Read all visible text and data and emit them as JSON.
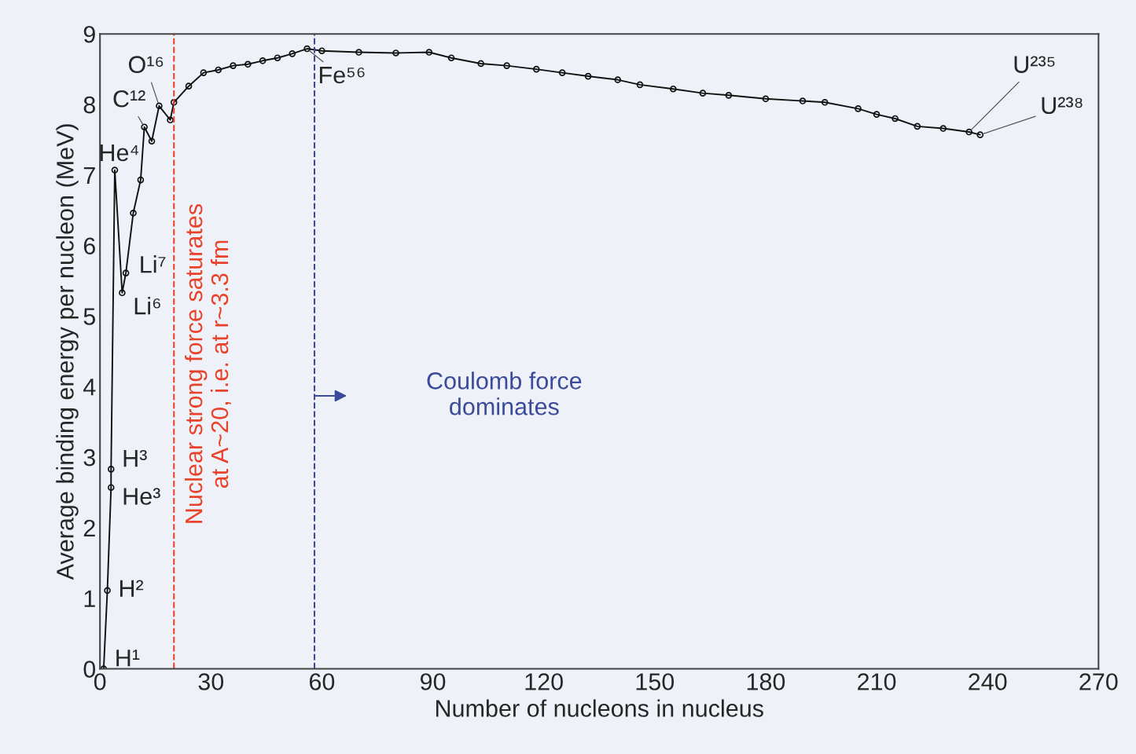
{
  "chart_data": {
    "type": "line",
    "xlabel": "Number of nucleons in nucleus",
    "ylabel": "Average binding energy per nucleon (MeV)",
    "x": [
      1,
      2,
      3,
      3,
      4,
      6,
      7,
      9,
      11,
      12,
      14,
      16,
      19,
      20,
      24,
      28,
      32,
      36,
      40,
      44,
      48,
      52,
      56,
      60,
      70,
      80,
      89,
      95,
      103,
      110,
      118,
      125,
      132,
      140,
      146,
      155,
      163,
      170,
      180,
      190,
      196,
      205,
      210,
      215,
      221,
      228,
      235,
      238
    ],
    "series": [
      {
        "color": "#111111",
        "values": [
          0,
          1.11,
          2.57,
          2.83,
          7.07,
          5.33,
          5.61,
          6.46,
          6.93,
          7.68,
          7.48,
          7.98,
          7.78,
          8.03,
          8.26,
          8.45,
          8.49,
          8.55,
          8.57,
          8.62,
          8.66,
          8.72,
          8.79,
          8.76,
          8.74,
          8.73,
          8.74,
          8.66,
          8.58,
          8.55,
          8.5,
          8.45,
          8.4,
          8.35,
          8.28,
          8.22,
          8.16,
          8.13,
          8.08,
          8.05,
          8.03,
          7.94,
          7.86,
          7.8,
          7.69,
          7.66,
          7.61,
          7.57
        ]
      }
    ],
    "marker": "circle",
    "line_style": "solid",
    "xlim": [
      0,
      270
    ],
    "xticks": [
      0,
      30,
      60,
      90,
      120,
      150,
      180,
      210,
      240,
      270
    ],
    "ylim": [
      0,
      9
    ],
    "yticks": [
      0,
      1,
      2,
      3,
      4,
      5,
      6,
      7,
      8,
      9
    ],
    "grid": false,
    "ref_lines": [
      {
        "axis": "x",
        "value": 20,
        "label": "Nuclear strong force saturates\nat A~20, i.e. at r~3.3 fm",
        "color": "#e8432a",
        "line_style": "dashed"
      },
      {
        "axis": "x",
        "value": 58,
        "label": "Coulomb force\ndominates",
        "color": "#3b4a9a",
        "line_style": "dashed"
      }
    ],
    "annotations": [
      {
        "text": "H¹",
        "x": 1,
        "y": 0
      },
      {
        "text": "H²",
        "x": 2,
        "y": 1.11
      },
      {
        "text": "H³",
        "x": 3,
        "y": 2.83
      },
      {
        "text": "He³",
        "x": 3,
        "y": 2.57
      },
      {
        "text": "He⁴",
        "x": 4,
        "y": 7.07
      },
      {
        "text": "Li⁶",
        "x": 6,
        "y": 5.33
      },
      {
        "text": "Li⁷",
        "x": 7,
        "y": 5.61
      },
      {
        "text": "C¹²",
        "x": 12,
        "y": 7.68
      },
      {
        "text": "O¹⁶",
        "x": 16,
        "y": 7.98
      },
      {
        "text": "Fe⁵⁶",
        "x": 56,
        "y": 8.79
      },
      {
        "text": "U²³⁵",
        "x": 235,
        "y": 7.61
      },
      {
        "text": "U²³⁸",
        "x": 238,
        "y": 7.57
      }
    ]
  }
}
